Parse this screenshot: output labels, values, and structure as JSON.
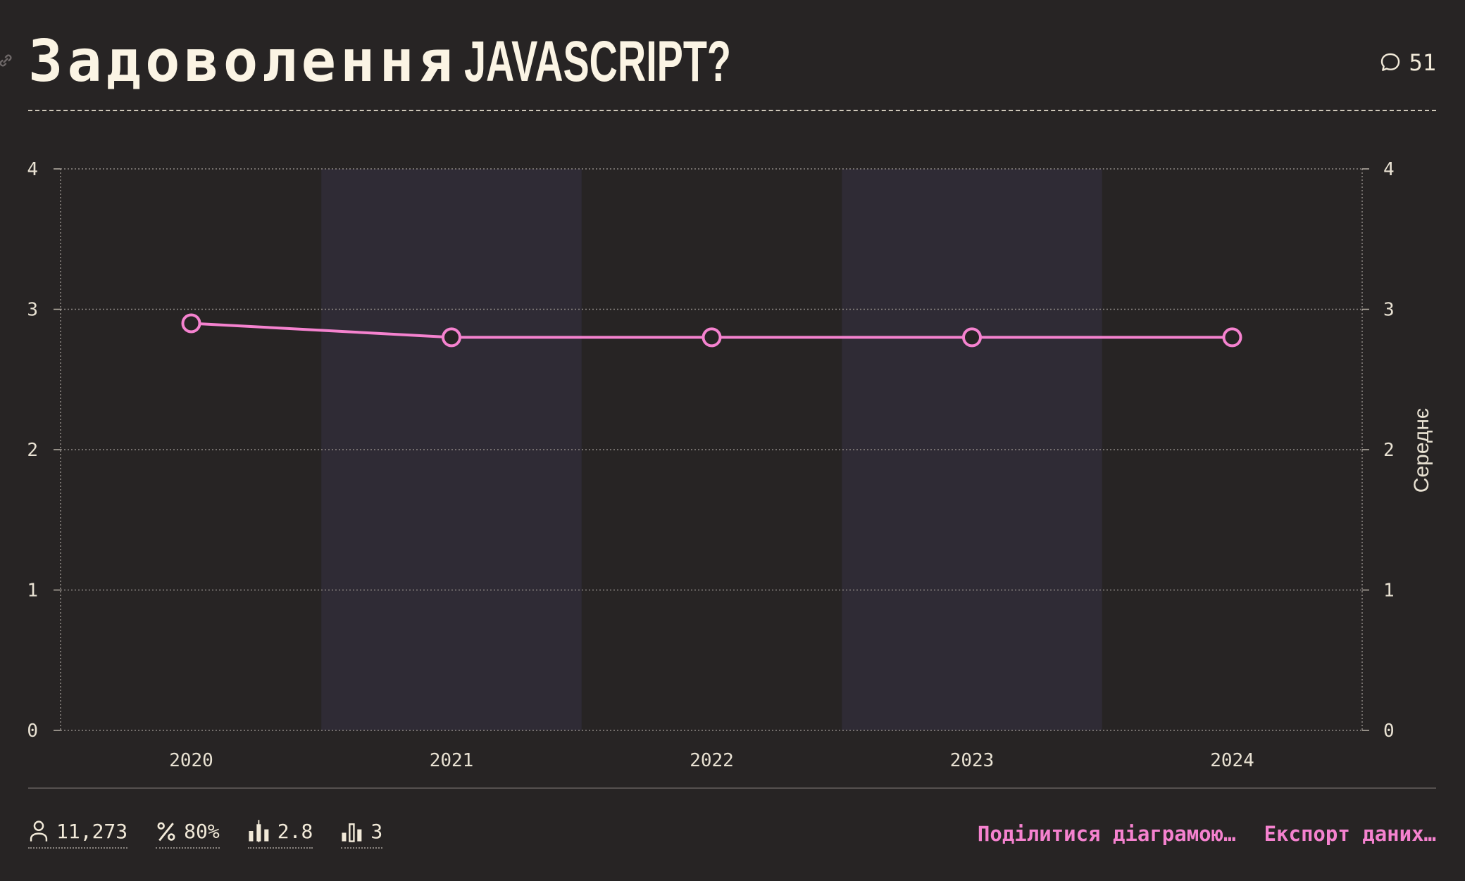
{
  "header": {
    "title_main": "Задоволення",
    "title_highlight": "JAVASCRIPT?",
    "comment_count": "51"
  },
  "stats": {
    "respondents": "11,273",
    "percent": "80%",
    "average": "2.8",
    "median": "3"
  },
  "actions": {
    "share": "Поділитися діаграмою…",
    "export": "Експорт даних…"
  },
  "colors": {
    "background": "#272424",
    "band": "#2f2b35",
    "line": "#f582cf",
    "text": "#f2ead9"
  },
  "chart_data": {
    "type": "line",
    "title": "Задоволення JAVASCRIPT?",
    "x": [
      "2020",
      "2021",
      "2022",
      "2023",
      "2024"
    ],
    "series": [
      {
        "values": [
          2.9,
          2.8,
          2.8,
          2.8,
          2.8
        ]
      }
    ],
    "y_right_label": "Середнє",
    "ylim": [
      0,
      4
    ],
    "yticks": [
      0,
      1,
      2,
      3,
      4
    ],
    "grid": true,
    "alternating_bands": true
  }
}
